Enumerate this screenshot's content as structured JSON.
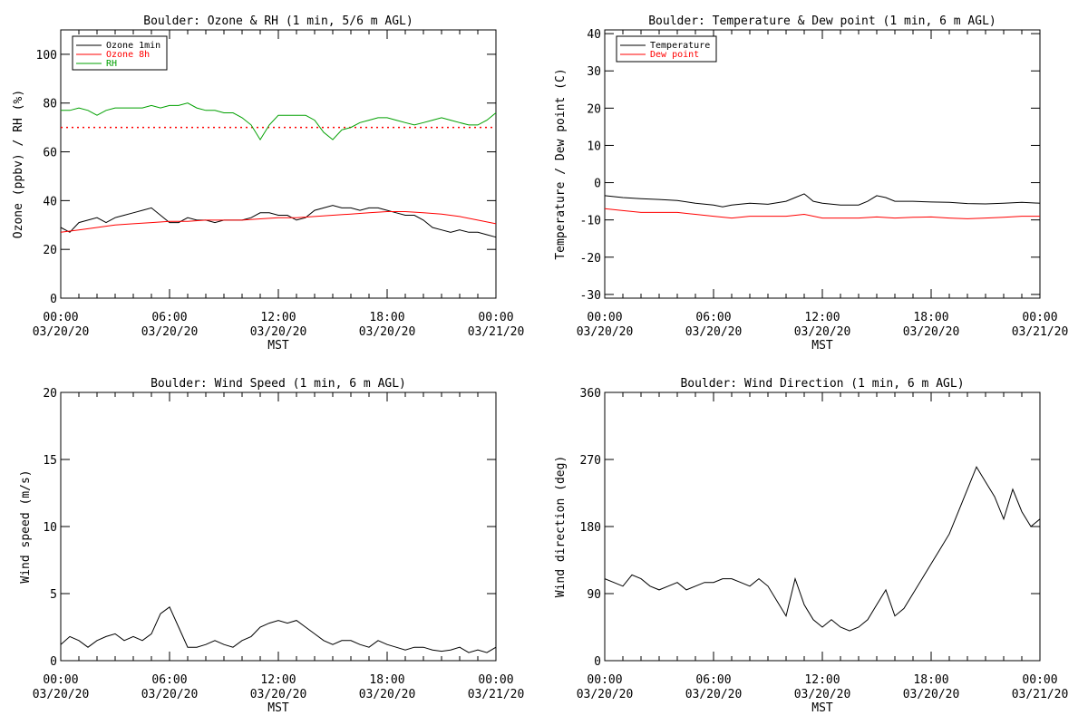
{
  "chart_data": [
    {
      "type": "line",
      "title": "Boulder: Ozone & RH (1 min, 5/6 m AGL)",
      "xlabel": "MST",
      "ylabel": "Ozone (ppbv) / RH (%)",
      "x_range": [
        "03/20/20 00:00",
        "03/21/20 00:00"
      ],
      "x_ticks": [
        {
          "time": "00:00",
          "date": "03/20/20"
        },
        {
          "time": "06:00",
          "date": "03/20/20"
        },
        {
          "time": "12:00",
          "date": "03/20/20"
        },
        {
          "time": "18:00",
          "date": "03/20/20"
        },
        {
          "time": "00:00",
          "date": "03/21/20"
        }
      ],
      "ylim": [
        0,
        110
      ],
      "y_ticks": [
        0,
        20,
        40,
        60,
        80,
        100
      ],
      "legend_position": "top-left",
      "reference_line": {
        "y": 70,
        "style": "dotted",
        "color": "#ff0000"
      },
      "series": [
        {
          "name": "Ozone 1min",
          "color": "#000000",
          "x_hours": [
            0,
            0.5,
            1,
            1.5,
            2,
            2.5,
            3,
            3.5,
            4,
            4.5,
            5,
            5.5,
            6,
            6.5,
            7,
            7.5,
            8,
            8.5,
            9,
            9.5,
            10,
            10.5,
            11,
            11.5,
            12,
            12.5,
            13,
            13.5,
            14,
            14.5,
            15,
            15.5,
            16,
            16.5,
            17,
            17.5,
            18,
            18.5,
            19,
            19.5,
            20,
            20.5,
            21,
            21.5,
            22,
            22.5,
            23,
            23.5,
            24
          ],
          "values": [
            29,
            27,
            31,
            32,
            33,
            31,
            33,
            34,
            35,
            36,
            37,
            34,
            31,
            31,
            33,
            32,
            32,
            31,
            32,
            32,
            32,
            33,
            35,
            35,
            34,
            34,
            32,
            33,
            36,
            37,
            38,
            37,
            37,
            36,
            37,
            37,
            36,
            35,
            34,
            34,
            32,
            29,
            28,
            27,
            28,
            27,
            27,
            26,
            25
          ]
        },
        {
          "name": "Ozone 8h",
          "color": "#ff0000",
          "x_hours": [
            0,
            1,
            2,
            3,
            4,
            5,
            6,
            7,
            8,
            9,
            10,
            11,
            12,
            13,
            14,
            15,
            16,
            17,
            18,
            19,
            20,
            21,
            22,
            23,
            24
          ],
          "values": [
            27,
            28,
            29,
            30,
            30.5,
            31,
            31.5,
            31.5,
            32,
            32,
            32,
            32.5,
            33,
            33,
            33.5,
            34,
            34.5,
            35,
            35.5,
            35.5,
            35,
            34.5,
            33.5,
            32,
            30.5
          ]
        },
        {
          "name": "RH",
          "color": "#00a000",
          "x_hours": [
            0,
            0.5,
            1,
            1.5,
            2,
            2.5,
            3,
            3.5,
            4,
            4.5,
            5,
            5.5,
            6,
            6.5,
            7,
            7.5,
            8,
            8.5,
            9,
            9.5,
            10,
            10.5,
            11,
            11.5,
            12,
            12.5,
            13,
            13.5,
            14,
            14.5,
            15,
            15.5,
            16,
            16.5,
            17,
            17.5,
            18,
            18.5,
            19,
            19.5,
            20,
            20.5,
            21,
            21.5,
            22,
            22.5,
            23,
            23.5,
            24
          ],
          "values": [
            77,
            77,
            78,
            77,
            75,
            77,
            78,
            78,
            78,
            78,
            79,
            78,
            79,
            79,
            80,
            78,
            77,
            77,
            76,
            76,
            74,
            71,
            65,
            71,
            75,
            75,
            75,
            75,
            73,
            68,
            65,
            69,
            70,
            72,
            73,
            74,
            74,
            73,
            72,
            71,
            72,
            73,
            74,
            73,
            72,
            71,
            71,
            73,
            76
          ]
        }
      ]
    },
    {
      "type": "line",
      "title": "Boulder: Temperature & Dew point (1 min, 6 m AGL)",
      "xlabel": "MST",
      "ylabel": "Temperature / Dew point (C)",
      "x_range": [
        "03/20/20 00:00",
        "03/21/20 00:00"
      ],
      "x_ticks": [
        {
          "time": "00:00",
          "date": "03/20/20"
        },
        {
          "time": "06:00",
          "date": "03/20/20"
        },
        {
          "time": "12:00",
          "date": "03/20/20"
        },
        {
          "time": "18:00",
          "date": "03/20/20"
        },
        {
          "time": "00:00",
          "date": "03/21/20"
        }
      ],
      "ylim": [
        -31,
        41
      ],
      "y_ticks": [
        -30,
        -20,
        -10,
        0,
        10,
        20,
        30,
        40
      ],
      "legend_position": "top-left",
      "series": [
        {
          "name": "Temperature",
          "color": "#000000",
          "x_hours": [
            0,
            1,
            2,
            3,
            4,
            5,
            6,
            6.5,
            7,
            8,
            9,
            10,
            10.5,
            11,
            11.5,
            12,
            13,
            14,
            14.5,
            15,
            15.5,
            16,
            17,
            18,
            19,
            20,
            21,
            22,
            23,
            24
          ],
          "values": [
            -3.5,
            -4,
            -4.3,
            -4.5,
            -4.8,
            -5.5,
            -6,
            -6.5,
            -6,
            -5.5,
            -5.8,
            -5,
            -4,
            -3,
            -5,
            -5.5,
            -6,
            -6,
            -5,
            -3.5,
            -4,
            -5,
            -5,
            -5.2,
            -5.3,
            -5.6,
            -5.7,
            -5.5,
            -5.3,
            -5.5
          ]
        },
        {
          "name": "Dew point",
          "color": "#ff0000",
          "x_hours": [
            0,
            1,
            2,
            3,
            4,
            5,
            6,
            7,
            8,
            9,
            10,
            11,
            12,
            13,
            14,
            15,
            16,
            17,
            18,
            19,
            20,
            21,
            22,
            23,
            24
          ],
          "values": [
            -7,
            -7.5,
            -8,
            -8,
            -8,
            -8.5,
            -9,
            -9.5,
            -9,
            -9,
            -9,
            -8.5,
            -9.5,
            -9.5,
            -9.5,
            -9.2,
            -9.5,
            -9.3,
            -9.2,
            -9.5,
            -9.7,
            -9.5,
            -9.3,
            -9,
            -9
          ]
        }
      ]
    },
    {
      "type": "line",
      "title": "Boulder: Wind Speed (1 min, 6 m AGL)",
      "xlabel": "MST",
      "ylabel": "Wind speed (m/s)",
      "x_range": [
        "03/20/20 00:00",
        "03/21/20 00:00"
      ],
      "x_ticks": [
        {
          "time": "00:00",
          "date": "03/20/20"
        },
        {
          "time": "06:00",
          "date": "03/20/20"
        },
        {
          "time": "12:00",
          "date": "03/20/20"
        },
        {
          "time": "18:00",
          "date": "03/20/20"
        },
        {
          "time": "00:00",
          "date": "03/21/20"
        }
      ],
      "ylim": [
        0,
        20
      ],
      "y_ticks": [
        0,
        5,
        10,
        15,
        20
      ],
      "series": [
        {
          "name": "",
          "color": "#000000",
          "x_hours": [
            0,
            0.5,
            1,
            1.5,
            2,
            2.5,
            3,
            3.5,
            4,
            4.5,
            5,
            5.5,
            6,
            6.5,
            7,
            7.5,
            8,
            8.5,
            9,
            9.5,
            10,
            10.5,
            11,
            11.5,
            12,
            12.5,
            13,
            13.5,
            14,
            14.5,
            15,
            15.5,
            16,
            16.5,
            17,
            17.5,
            18,
            18.5,
            19,
            19.5,
            20,
            20.5,
            21,
            21.5,
            22,
            22.5,
            23,
            23.5,
            24
          ],
          "values": [
            1.2,
            1.8,
            1.5,
            1.0,
            1.5,
            1.8,
            2.0,
            1.5,
            1.8,
            1.5,
            2.0,
            3.5,
            4.0,
            2.5,
            1.0,
            1.0,
            1.2,
            1.5,
            1.2,
            1.0,
            1.5,
            1.8,
            2.5,
            2.8,
            3.0,
            2.8,
            3.0,
            2.5,
            2.0,
            1.5,
            1.2,
            1.5,
            1.5,
            1.2,
            1.0,
            1.5,
            1.2,
            1.0,
            0.8,
            1.0,
            1.0,
            0.8,
            0.7,
            0.8,
            1.0,
            0.6,
            0.8,
            0.6,
            1.0
          ]
        }
      ]
    },
    {
      "type": "line",
      "title": "Boulder: Wind Direction (1 min, 6 m AGL)",
      "xlabel": "MST",
      "ylabel": "Wind direction (deg)",
      "x_range": [
        "03/20/20 00:00",
        "03/21/20 00:00"
      ],
      "x_ticks": [
        {
          "time": "00:00",
          "date": "03/20/20"
        },
        {
          "time": "06:00",
          "date": "03/20/20"
        },
        {
          "time": "12:00",
          "date": "03/20/20"
        },
        {
          "time": "18:00",
          "date": "03/20/20"
        },
        {
          "time": "00:00",
          "date": "03/21/20"
        }
      ],
      "ylim": [
        0,
        360
      ],
      "y_ticks": [
        0,
        90,
        180,
        270,
        360
      ],
      "series": [
        {
          "name": "",
          "color": "#000000",
          "x_hours": [
            0,
            0.5,
            1,
            1.5,
            2,
            2.5,
            3,
            3.5,
            4,
            4.5,
            5,
            5.5,
            6,
            6.5,
            7,
            7.5,
            8,
            8.5,
            9,
            9.5,
            10,
            10.5,
            11,
            11.5,
            12,
            12.5,
            13,
            13.5,
            14,
            14.5,
            15,
            15.5,
            16,
            16.5,
            17,
            17.5,
            18,
            18.5,
            19,
            19.5,
            20,
            20.5,
            21,
            21.5,
            22,
            22.5,
            23,
            23.5,
            24
          ],
          "values": [
            110,
            105,
            100,
            115,
            110,
            100,
            95,
            100,
            105,
            95,
            100,
            105,
            105,
            110,
            110,
            105,
            100,
            110,
            100,
            80,
            60,
            110,
            75,
            55,
            45,
            55,
            45,
            40,
            45,
            55,
            75,
            95,
            60,
            70,
            90,
            110,
            130,
            150,
            170,
            200,
            230,
            260,
            240,
            220,
            190,
            230,
            200,
            180,
            190
          ]
        }
      ]
    }
  ]
}
